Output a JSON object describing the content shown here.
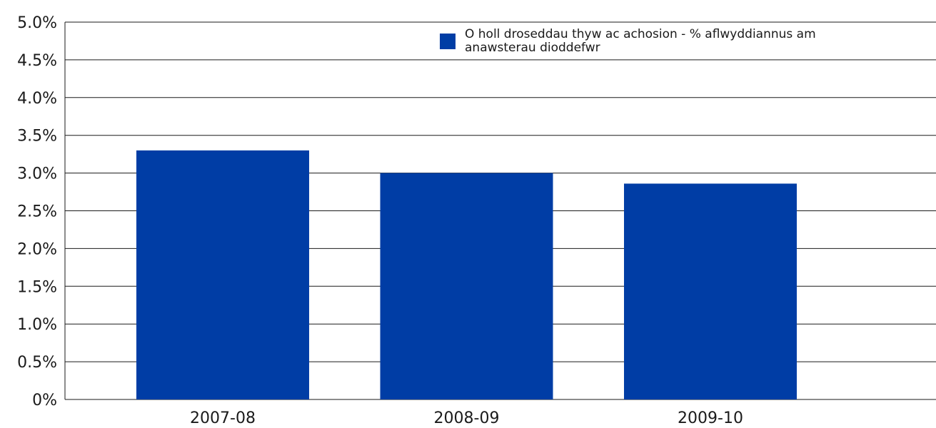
{
  "chart_data": {
    "type": "bar",
    "title": "",
    "xlabel": "",
    "ylabel": "",
    "categories": [
      "2007-08",
      "2008-09",
      "2009-10"
    ],
    "series": [
      {
        "name": "O holl droseddau thyw ac achosion - % aflwyddiannus am anawsterau dioddefwr",
        "values": [
          3.3,
          3.0,
          2.86
        ]
      }
    ],
    "ylim": [
      0,
      5.0
    ],
    "yticks": [
      {
        "value": 0,
        "label": "0%"
      },
      {
        "value": 0.5,
        "label": "0.5%"
      },
      {
        "value": 1.0,
        "label": "1.0%"
      },
      {
        "value": 1.5,
        "label": "1.5%"
      },
      {
        "value": 2.0,
        "label": "2.0%"
      },
      {
        "value": 2.5,
        "label": "2.5%"
      },
      {
        "value": 3.0,
        "label": "3.0%"
      },
      {
        "value": 3.5,
        "label": "3.5%"
      },
      {
        "value": 4.0,
        "label": "4.0%"
      },
      {
        "value": 4.5,
        "label": "4.5%"
      },
      {
        "value": 5.0,
        "label": "5.0%"
      }
    ],
    "grid": true,
    "legend_position": "top-right",
    "legend_lines": [
      "O holl droseddau thyw ac achosion - % aflwyddiannus am",
      "anawsterau dioddefwr"
    ],
    "colors": {
      "bar": "#003DA5",
      "grid": "#1a1a1a"
    }
  }
}
